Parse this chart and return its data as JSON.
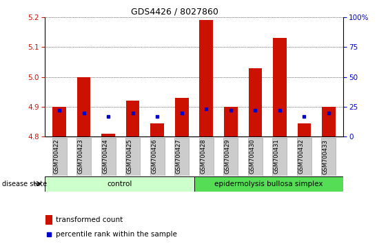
{
  "title": "GDS4426 / 8027860",
  "samples": [
    "GSM700422",
    "GSM700423",
    "GSM700424",
    "GSM700425",
    "GSM700426",
    "GSM700427",
    "GSM700428",
    "GSM700429",
    "GSM700430",
    "GSM700431",
    "GSM700432",
    "GSM700433"
  ],
  "transformed_count": [
    4.9,
    5.0,
    4.81,
    4.92,
    4.845,
    4.93,
    5.19,
    4.9,
    5.03,
    5.13,
    4.845,
    4.9
  ],
  "percentile_rank": [
    22,
    20,
    17,
    20,
    17,
    20,
    23,
    22,
    22,
    22,
    17,
    20
  ],
  "ylim_left": [
    4.8,
    5.2
  ],
  "ylim_right": [
    0,
    100
  ],
  "yticks_left": [
    4.8,
    4.9,
    5.0,
    5.1,
    5.2
  ],
  "yticks_right": [
    0,
    25,
    50,
    75,
    100
  ],
  "ytick_right_labels": [
    "0",
    "25",
    "50",
    "75",
    "100%"
  ],
  "bar_color": "#cc1100",
  "blue_color": "#0000cc",
  "bar_width": 0.55,
  "control_count": 6,
  "disease_label": "epidermolysis bullosa simplex",
  "control_label": "control",
  "disease_state_label": "disease state",
  "legend_bar_label": "transformed count",
  "legend_blue_label": "percentile rank within the sample",
  "control_bg": "#ccffcc",
  "disease_bg": "#55dd55",
  "label_box_bg": "#cccccc",
  "label_box_edge": "#aaaaaa"
}
